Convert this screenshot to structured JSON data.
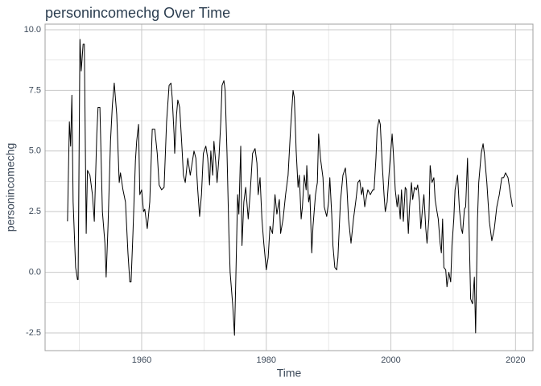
{
  "chart_data": {
    "type": "line",
    "title": "personincomechg Over Time",
    "x_label": "Time",
    "y_label": "personincomechg",
    "x": [
      1948.1,
      1948.4,
      1948.6,
      1948.8,
      1949.0,
      1949.4,
      1949.7,
      1949.8,
      1950.1,
      1950.3,
      1950.6,
      1950.8,
      1951.1,
      1951.3,
      1951.7,
      1952.1,
      1952.4,
      1952.8,
      1953.0,
      1953.3,
      1953.7,
      1954.1,
      1954.3,
      1954.6,
      1955.0,
      1955.3,
      1955.6,
      1956.0,
      1956.4,
      1956.6,
      1957.0,
      1957.4,
      1957.8,
      1958.1,
      1958.3,
      1958.6,
      1959.0,
      1959.2,
      1959.5,
      1959.7,
      1960.0,
      1960.3,
      1960.5,
      1960.9,
      1961.3,
      1961.7,
      1962.1,
      1962.5,
      1962.8,
      1963.2,
      1963.6,
      1964.0,
      1964.4,
      1964.7,
      1964.9,
      1965.2,
      1965.3,
      1965.6,
      1965.8,
      1966.1,
      1966.5,
      1966.7,
      1967.0,
      1967.4,
      1967.8,
      1968.1,
      1968.4,
      1968.7,
      1969.0,
      1969.3,
      1969.6,
      1969.9,
      1970.3,
      1970.6,
      1970.9,
      1971.1,
      1971.4,
      1971.6,
      1971.9,
      1972.1,
      1972.4,
      1972.7,
      1972.9,
      1973.2,
      1973.4,
      1973.7,
      1974.0,
      1974.2,
      1974.6,
      1974.9,
      1975.1,
      1975.4,
      1975.6,
      1975.9,
      1976.1,
      1976.4,
      1976.7,
      1977.1,
      1977.4,
      1977.8,
      1978.2,
      1978.5,
      1978.7,
      1979.0,
      1979.3,
      1979.6,
      1980.0,
      1980.3,
      1980.6,
      1981.0,
      1981.4,
      1981.7,
      1982.1,
      1982.3,
      1982.7,
      1983.1,
      1983.5,
      1983.9,
      1984.3,
      1984.5,
      1984.8,
      1985.1,
      1985.3,
      1985.6,
      1985.8,
      1986.1,
      1986.4,
      1986.5,
      1986.8,
      1987.0,
      1987.3,
      1987.5,
      1987.9,
      1988.2,
      1988.4,
      1988.7,
      1989.1,
      1989.3,
      1989.7,
      1990.0,
      1990.2,
      1990.5,
      1990.7,
      1991.0,
      1991.3,
      1991.5,
      1991.9,
      1992.3,
      1992.7,
      1992.9,
      1993.2,
      1993.6,
      1994.0,
      1994.4,
      1994.7,
      1995.0,
      1995.3,
      1995.5,
      1995.8,
      1996.0,
      1996.3,
      1996.7,
      1997.1,
      1997.3,
      1997.6,
      1997.8,
      1998.1,
      1998.3,
      1998.6,
      1998.9,
      1999.1,
      1999.4,
      1999.8,
      2000.2,
      2000.4,
      2000.7,
      2001.0,
      2001.2,
      2001.5,
      2001.7,
      2002.0,
      2002.3,
      2002.5,
      2002.8,
      2003.0,
      2003.3,
      2003.5,
      2003.8,
      2004.1,
      2004.3,
      2004.6,
      2004.8,
      2005.1,
      2005.3,
      2005.6,
      2005.8,
      2006.1,
      2006.3,
      2006.6,
      2006.9,
      2007.1,
      2007.4,
      2007.6,
      2007.9,
      2008.1,
      2008.3,
      2008.5,
      2008.8,
      2009.0,
      2009.3,
      2009.6,
      2009.8,
      2010.1,
      2010.3,
      2010.7,
      2011.0,
      2011.3,
      2011.5,
      2011.8,
      2012.0,
      2012.3,
      2012.6,
      2012.8,
      2013.1,
      2013.4,
      2013.6,
      2013.9,
      2014.1,
      2014.5,
      2014.8,
      2015.0,
      2015.4,
      2015.8,
      2016.2,
      2016.6,
      2017.0,
      2017.4,
      2017.8,
      2018.1,
      2018.4,
      2018.8,
      2019.2,
      2019.5
    ],
    "series": [
      {
        "name": "personincomechg",
        "color": "#000000",
        "values": [
          2.1,
          6.2,
          5.2,
          7.3,
          2.9,
          0.2,
          -0.3,
          -0.3,
          9.6,
          8.3,
          9.4,
          9.4,
          1.6,
          4.2,
          4.0,
          3.2,
          2.1,
          5.7,
          6.8,
          6.8,
          2.5,
          1.2,
          -0.2,
          1.9,
          5.4,
          6.9,
          7.8,
          6.5,
          3.7,
          4.1,
          3.4,
          2.9,
          0.8,
          -0.4,
          -0.4,
          1.6,
          4.6,
          5.4,
          6.1,
          3.2,
          3.4,
          2.5,
          2.6,
          1.8,
          2.9,
          5.9,
          5.9,
          4.9,
          3.6,
          3.4,
          3.5,
          6.2,
          7.7,
          7.8,
          7.2,
          5.7,
          4.9,
          6.5,
          7.1,
          6.8,
          5.0,
          4.0,
          3.7,
          4.7,
          4.0,
          4.5,
          5.0,
          4.7,
          3.4,
          2.3,
          3.2,
          4.9,
          5.2,
          4.7,
          3.6,
          5.0,
          4.0,
          5.4,
          4.5,
          3.7,
          4.7,
          6.2,
          7.7,
          7.9,
          7.5,
          4.9,
          1.6,
          0.0,
          -1.3,
          -2.6,
          -0.4,
          3.2,
          2.4,
          5.2,
          1.1,
          2.9,
          3.5,
          2.2,
          3.2,
          4.9,
          5.1,
          4.5,
          3.2,
          3.9,
          2.2,
          1.2,
          0.1,
          0.6,
          1.9,
          1.6,
          3.2,
          2.4,
          3.0,
          1.6,
          2.2,
          3.2,
          4.0,
          5.9,
          7.5,
          7.2,
          5.0,
          3.5,
          4.0,
          2.2,
          2.7,
          4.0,
          3.4,
          4.4,
          2.9,
          3.2,
          0.8,
          1.9,
          3.2,
          3.7,
          5.7,
          4.7,
          3.9,
          2.7,
          2.3,
          2.9,
          3.9,
          2.4,
          1.1,
          0.2,
          0.1,
          0.6,
          2.9,
          4.0,
          4.3,
          3.7,
          2.2,
          1.2,
          2.2,
          3.0,
          3.7,
          3.8,
          3.2,
          3.5,
          2.7,
          3.0,
          3.4,
          3.2,
          3.4,
          3.4,
          4.7,
          5.9,
          6.3,
          6.1,
          4.5,
          3.2,
          2.5,
          2.9,
          4.4,
          5.7,
          4.9,
          3.4,
          2.7,
          3.2,
          2.2,
          3.4,
          2.1,
          3.5,
          3.4,
          1.6,
          2.7,
          3.7,
          3.0,
          3.5,
          3.4,
          3.6,
          2.9,
          1.8,
          2.7,
          3.2,
          1.8,
          1.2,
          2.2,
          4.4,
          3.7,
          3.9,
          3.0,
          2.5,
          2.2,
          1.2,
          0.8,
          2.2,
          0.2,
          0.1,
          -0.6,
          0.0,
          -0.4,
          1.1,
          2.2,
          3.4,
          4.0,
          2.6,
          1.8,
          1.6,
          2.6,
          2.7,
          4.7,
          1.2,
          -1.1,
          -1.3,
          -0.2,
          -2.5,
          2.2,
          3.7,
          4.9,
          5.3,
          4.9,
          3.7,
          2.1,
          1.3,
          1.8,
          2.7,
          3.2,
          3.9,
          3.9,
          4.1,
          3.9,
          3.2,
          2.7
        ]
      }
    ],
    "xlim": [
      1944.5,
      2022.8
    ],
    "ylim": [
      -3.23,
      10.23
    ],
    "xticks": [
      1960,
      1980,
      2000,
      2020
    ],
    "yticks": [
      {
        "value": -2.5,
        "label": "-2.5"
      },
      {
        "value": 0,
        "label": "0.0"
      },
      {
        "value": 2.5,
        "label": "2.5"
      },
      {
        "value": 5,
        "label": "5.0"
      },
      {
        "value": 7.5,
        "label": "7.5"
      },
      {
        "value": 10,
        "label": "10.0"
      }
    ],
    "grid": true,
    "minor_grid": true
  }
}
